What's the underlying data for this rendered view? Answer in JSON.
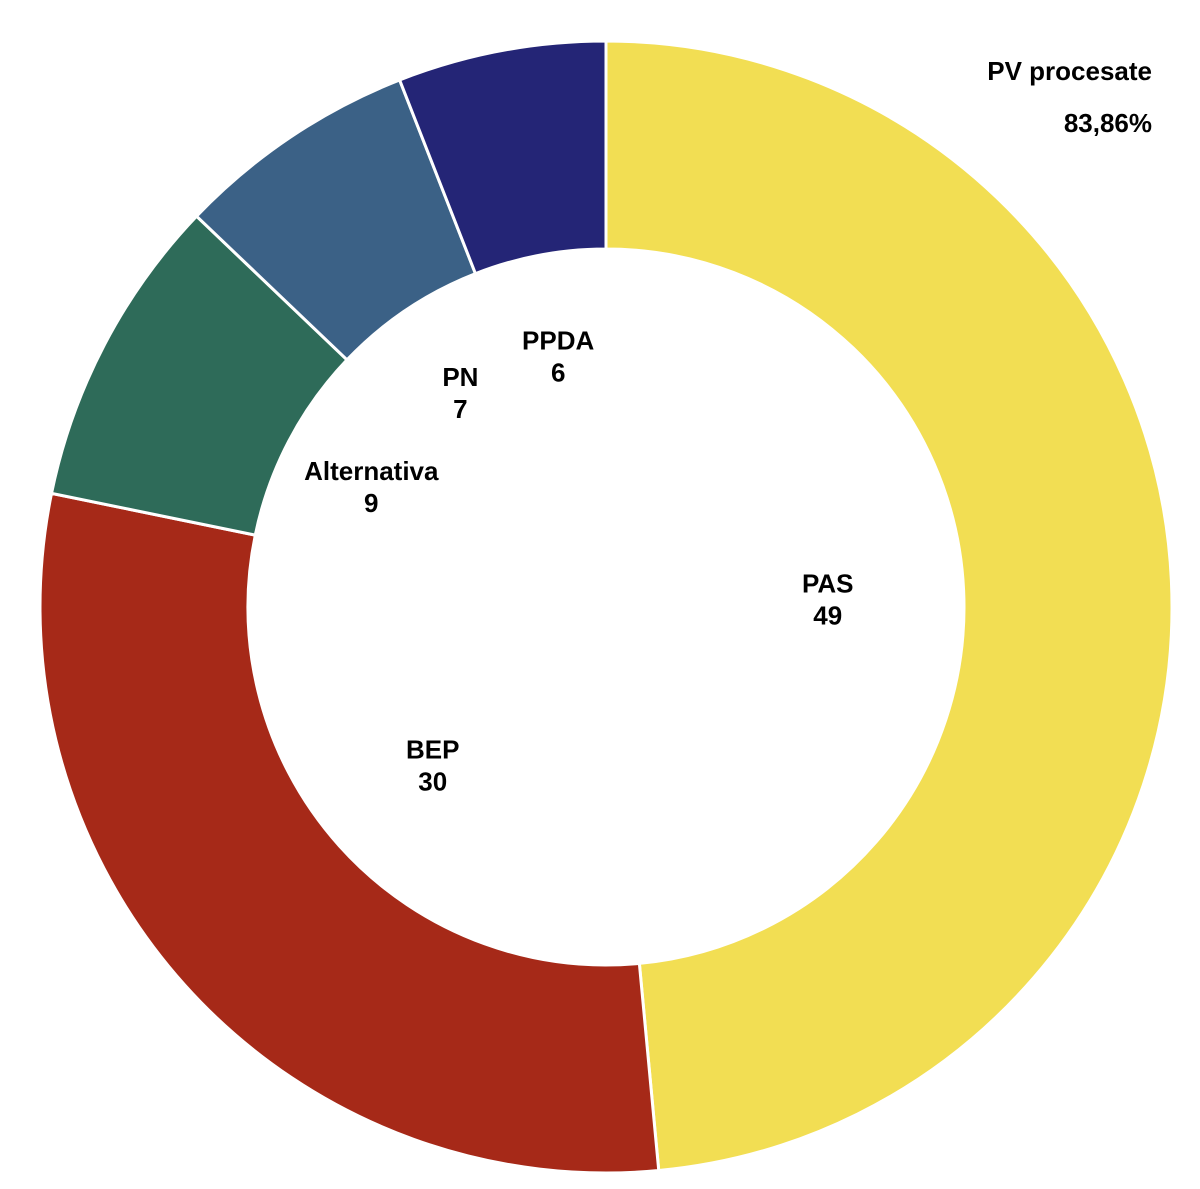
{
  "header": {
    "title": "PV procesate",
    "subtitle": "83,86%"
  },
  "chart_data": {
    "type": "pie",
    "variant": "donut",
    "title": "PV procesate",
    "subtitle": "83,86%",
    "legend": "none",
    "start_angle_deg": 0,
    "direction": "clockwise",
    "slices": [
      {
        "label": "PAS",
        "value": 49,
        "color": "#F2DE53"
      },
      {
        "label": "BEP",
        "value": 30,
        "color": "#A62918"
      },
      {
        "label": "Alternativa",
        "value": 9,
        "color": "#2E6B59"
      },
      {
        "label": "PN",
        "value": 7,
        "color": "#3B6186"
      },
      {
        "label": "PPDA",
        "value": 6,
        "color": "#242576"
      }
    ]
  }
}
